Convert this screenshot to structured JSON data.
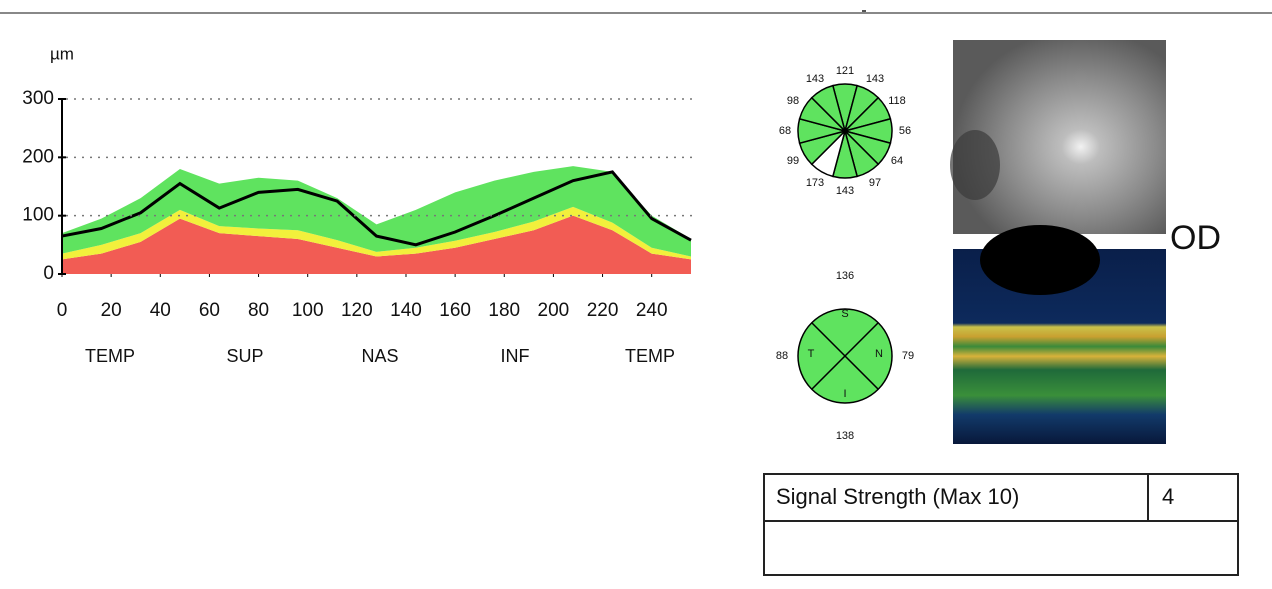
{
  "chart_data": {
    "type": "area",
    "stacked": true,
    "y_unit_label": "µm",
    "x": [
      0,
      16,
      32,
      48,
      64,
      80,
      96,
      112,
      128,
      144,
      160,
      176,
      192,
      208,
      224,
      240,
      256
    ],
    "xlim": [
      0,
      256
    ],
    "xticks": [
      0,
      20,
      40,
      60,
      80,
      100,
      120,
      140,
      160,
      180,
      200,
      220,
      240
    ],
    "ylim": [
      0,
      300
    ],
    "yticks": [
      0,
      100,
      200,
      300
    ],
    "grid": "dotted",
    "section_labels": [
      "TEMP",
      "SUP",
      "NAS",
      "INF",
      "TEMP"
    ],
    "series": [
      {
        "type": "area",
        "color": "#f25c54",
        "values": [
          25,
          35,
          55,
          95,
          70,
          65,
          60,
          45,
          30,
          35,
          45,
          60,
          75,
          100,
          75,
          35,
          25
        ]
      },
      {
        "type": "area",
        "color": "#f2f03c",
        "values": [
          10,
          15,
          15,
          15,
          12,
          13,
          15,
          13,
          8,
          10,
          12,
          12,
          15,
          15,
          13,
          10,
          5
        ]
      },
      {
        "type": "area",
        "color": "#5fe35f",
        "values": [
          35,
          45,
          60,
          70,
          73,
          87,
          85,
          72,
          47,
          65,
          83,
          88,
          85,
          70,
          87,
          55,
          30
        ]
      },
      {
        "type": "line",
        "color": "#000000",
        "values": [
          65,
          78,
          105,
          155,
          113,
          140,
          145,
          125,
          65,
          50,
          72,
          100,
          130,
          160,
          175,
          95,
          58
        ]
      }
    ]
  },
  "clock_hours": {
    "values": [
      "121",
      "143",
      "118",
      "56",
      "64",
      "97",
      "143",
      "173",
      "99",
      "68",
      "98",
      "143"
    ],
    "colors": [
      "#5fe35f",
      "#5fe35f",
      "#5fe35f",
      "#5fe35f",
      "#5fe35f",
      "#5fe35f",
      "#5fe35f",
      "#ffffff",
      "#5fe35f",
      "#5fe35f",
      "#5fe35f",
      "#5fe35f"
    ]
  },
  "quadrants": [
    {
      "letter": "S",
      "value": "136"
    },
    {
      "letter": "N",
      "value": "79"
    },
    {
      "letter": "I",
      "value": "138"
    },
    {
      "letter": "T",
      "value": "88"
    }
  ],
  "eye_label": "OD",
  "signal_table": {
    "rows": [
      [
        "Signal Strength (Max 10)",
        "4"
      ],
      [
        "",
        ""
      ]
    ]
  }
}
